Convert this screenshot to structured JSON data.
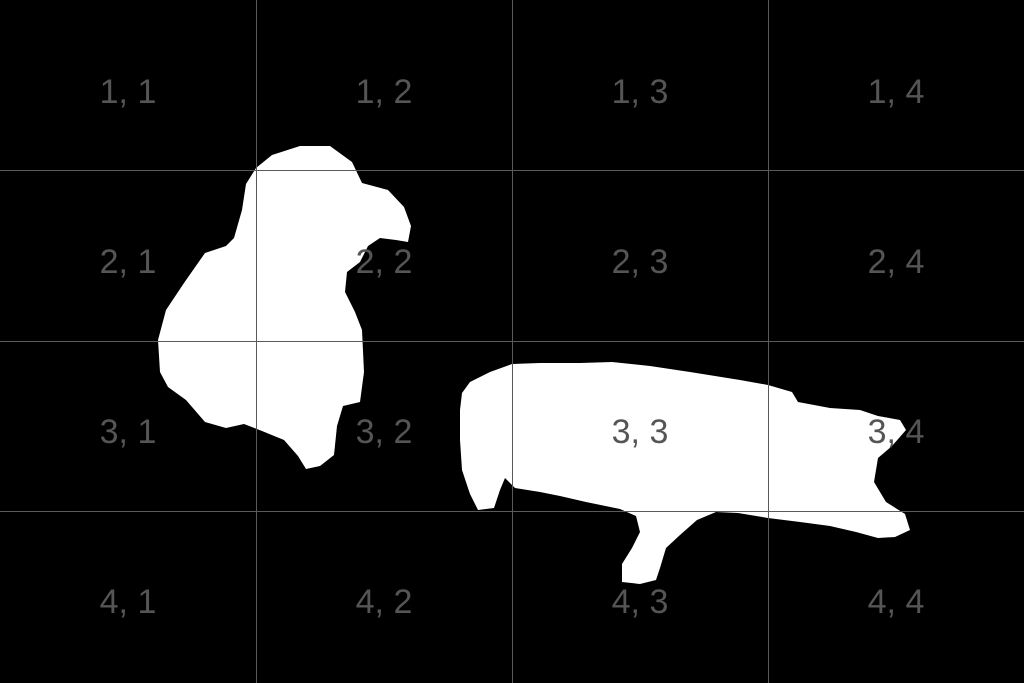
{
  "colors": {
    "background": "#000000",
    "mask": "#ffffff",
    "grid_line": "#5a5a5a",
    "label": "#555555"
  },
  "grid": {
    "rows": 4,
    "cols": 4,
    "cells": [
      [
        "1, 1",
        "1, 2",
        "1, 3",
        "1, 4"
      ],
      [
        "2, 1",
        "2, 2",
        "2, 3",
        "2, 4"
      ],
      [
        "3, 1",
        "3, 2",
        "3, 3",
        "3, 4"
      ],
      [
        "4, 1",
        "4, 2",
        "4, 3",
        "4, 4"
      ]
    ]
  },
  "shapes": [
    "left-bird-mask",
    "right-bird-mask"
  ]
}
